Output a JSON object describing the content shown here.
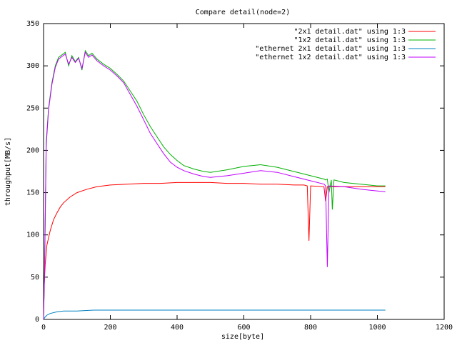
{
  "chart_data": {
    "type": "line",
    "title": "Compare detail(node=2)",
    "xlabel": "size[byte]",
    "ylabel": "throughput[MB/s]",
    "xlim": [
      0,
      1200
    ],
    "ylim": [
      0,
      350
    ],
    "xticks": [
      0,
      200,
      400,
      600,
      800,
      1000,
      1200
    ],
    "yticks": [
      0,
      50,
      100,
      150,
      200,
      250,
      300,
      350
    ],
    "grid": false,
    "legend_position": "top-right",
    "series": [
      {
        "name": "\"2x1 detail.dat\" using 1:3",
        "color": "#ff0000",
        "points": [
          [
            0,
            0
          ],
          [
            2,
            40
          ],
          [
            5,
            65
          ],
          [
            10,
            88
          ],
          [
            20,
            105
          ],
          [
            30,
            118
          ],
          [
            40,
            126
          ],
          [
            50,
            133
          ],
          [
            60,
            138
          ],
          [
            80,
            145
          ],
          [
            100,
            150
          ],
          [
            130,
            154
          ],
          [
            160,
            157
          ],
          [
            200,
            159
          ],
          [
            250,
            160
          ],
          [
            300,
            161
          ],
          [
            350,
            161
          ],
          [
            400,
            162
          ],
          [
            450,
            162
          ],
          [
            500,
            162
          ],
          [
            550,
            161
          ],
          [
            600,
            161
          ],
          [
            650,
            160
          ],
          [
            700,
            160
          ],
          [
            750,
            159
          ],
          [
            780,
            159
          ],
          [
            790,
            158
          ],
          [
            795,
            93
          ],
          [
            800,
            158
          ],
          [
            840,
            157
          ],
          [
            845,
            140
          ],
          [
            850,
            157
          ],
          [
            900,
            157
          ],
          [
            950,
            157
          ],
          [
            1000,
            157
          ],
          [
            1024,
            157
          ]
        ]
      },
      {
        "name": "\"1x2 detail.dat\" using 1:3",
        "color": "#00b000",
        "points": [
          [
            0,
            0
          ],
          [
            3,
            60
          ],
          [
            8,
            210
          ],
          [
            15,
            250
          ],
          [
            25,
            280
          ],
          [
            35,
            300
          ],
          [
            45,
            310
          ],
          [
            55,
            313
          ],
          [
            65,
            316
          ],
          [
            75,
            300
          ],
          [
            85,
            312
          ],
          [
            95,
            305
          ],
          [
            105,
            310
          ],
          [
            115,
            295
          ],
          [
            125,
            318
          ],
          [
            135,
            312
          ],
          [
            145,
            315
          ],
          [
            160,
            308
          ],
          [
            180,
            302
          ],
          [
            200,
            297
          ],
          [
            220,
            290
          ],
          [
            240,
            282
          ],
          [
            260,
            270
          ],
          [
            280,
            258
          ],
          [
            300,
            242
          ],
          [
            320,
            228
          ],
          [
            340,
            216
          ],
          [
            360,
            204
          ],
          [
            380,
            195
          ],
          [
            400,
            188
          ],
          [
            420,
            182
          ],
          [
            450,
            178
          ],
          [
            480,
            175
          ],
          [
            500,
            174
          ],
          [
            550,
            177
          ],
          [
            600,
            181
          ],
          [
            650,
            183
          ],
          [
            700,
            180
          ],
          [
            750,
            175
          ],
          [
            800,
            170
          ],
          [
            840,
            166
          ],
          [
            845,
            165
          ],
          [
            850,
            166
          ],
          [
            855,
            150
          ],
          [
            862,
            165
          ],
          [
            865,
            130
          ],
          [
            870,
            165
          ],
          [
            900,
            162
          ],
          [
            950,
            160
          ],
          [
            1000,
            158
          ],
          [
            1024,
            158
          ]
        ]
      },
      {
        "name": "\"ethernet 2x1 detail.dat\" using 1:3",
        "color": "#0080c0",
        "points": [
          [
            0,
            0
          ],
          [
            5,
            3
          ],
          [
            10,
            5
          ],
          [
            20,
            7
          ],
          [
            40,
            9
          ],
          [
            60,
            10
          ],
          [
            100,
            10
          ],
          [
            150,
            11
          ],
          [
            200,
            11
          ],
          [
            300,
            11
          ],
          [
            400,
            11
          ],
          [
            500,
            11
          ],
          [
            600,
            11
          ],
          [
            700,
            11
          ],
          [
            800,
            11
          ],
          [
            900,
            11
          ],
          [
            1000,
            11
          ],
          [
            1024,
            11
          ]
        ]
      },
      {
        "name": "\"ethernet 1x2 detail.dat\" using 1:3",
        "color": "#c000ff",
        "points": [
          [
            0,
            0
          ],
          [
            3,
            55
          ],
          [
            8,
            205
          ],
          [
            15,
            248
          ],
          [
            25,
            278
          ],
          [
            35,
            298
          ],
          [
            45,
            308
          ],
          [
            55,
            311
          ],
          [
            65,
            314
          ],
          [
            75,
            302
          ],
          [
            85,
            310
          ],
          [
            95,
            304
          ],
          [
            105,
            309
          ],
          [
            115,
            297
          ],
          [
            125,
            316
          ],
          [
            135,
            310
          ],
          [
            145,
            313
          ],
          [
            160,
            306
          ],
          [
            180,
            300
          ],
          [
            200,
            295
          ],
          [
            220,
            288
          ],
          [
            240,
            280
          ],
          [
            260,
            266
          ],
          [
            280,
            252
          ],
          [
            300,
            236
          ],
          [
            320,
            220
          ],
          [
            340,
            208
          ],
          [
            360,
            196
          ],
          [
            380,
            186
          ],
          [
            400,
            180
          ],
          [
            420,
            176
          ],
          [
            450,
            172
          ],
          [
            480,
            169
          ],
          [
            500,
            168
          ],
          [
            550,
            170
          ],
          [
            600,
            173
          ],
          [
            650,
            176
          ],
          [
            700,
            174
          ],
          [
            750,
            169
          ],
          [
            800,
            164
          ],
          [
            840,
            160
          ],
          [
            845,
            158
          ],
          [
            850,
            62
          ],
          [
            855,
            158
          ],
          [
            900,
            157
          ],
          [
            950,
            154
          ],
          [
            1000,
            152
          ],
          [
            1024,
            151
          ]
        ]
      }
    ]
  }
}
